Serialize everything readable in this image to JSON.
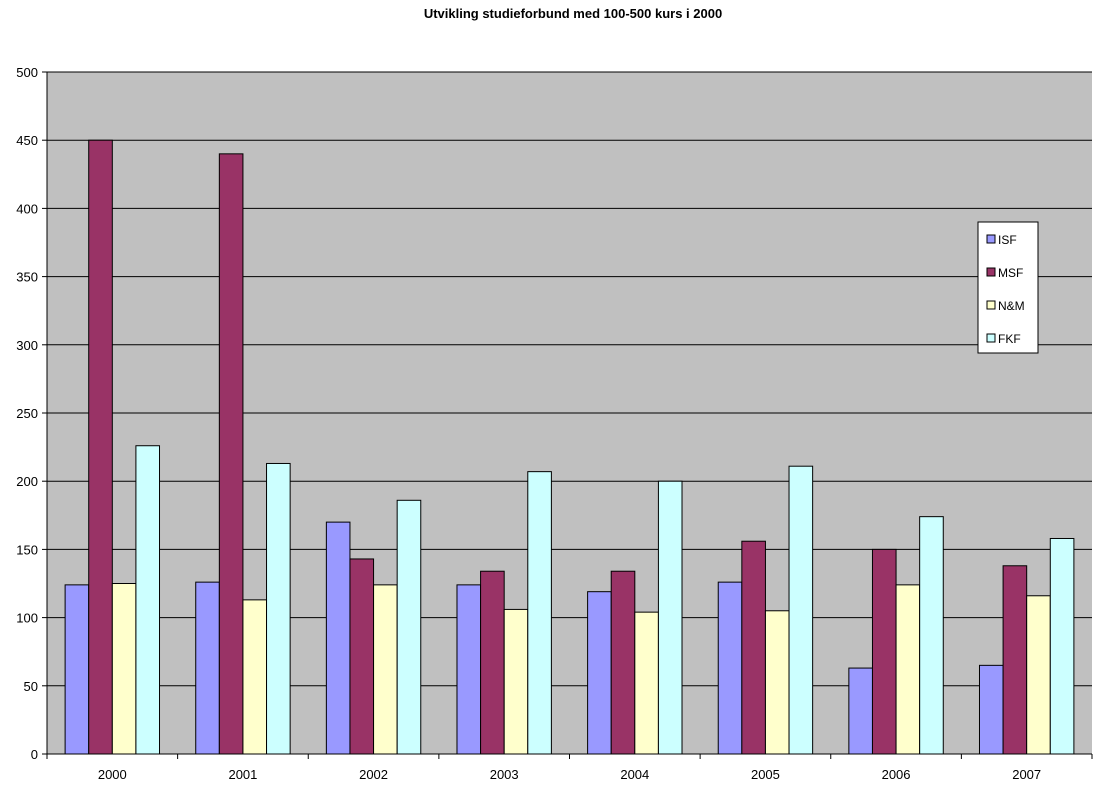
{
  "colors": {
    "plot_background": "#c0c0c0",
    "gridline": "#000000",
    "series": [
      "#9999ff",
      "#993366",
      "#ffffcc",
      "#ccffff"
    ]
  },
  "chart_data": {
    "type": "bar",
    "title": "Utvikling studieforbund med 100-500 kurs i 2000",
    "xlabel": "",
    "ylabel": "",
    "categories": [
      "2000",
      "2001",
      "2002",
      "2003",
      "2004",
      "2005",
      "2006",
      "2007"
    ],
    "ylim": [
      0,
      500
    ],
    "yticks": [
      0,
      50,
      100,
      150,
      200,
      250,
      300,
      350,
      400,
      450,
      500
    ],
    "grid": true,
    "legend_position": "right",
    "series": [
      {
        "name": "ISF",
        "values": [
          124,
          126,
          170,
          124,
          119,
          126,
          63,
          65
        ]
      },
      {
        "name": "MSF",
        "values": [
          450,
          440,
          143,
          134,
          134,
          156,
          150,
          138
        ]
      },
      {
        "name": "N&M",
        "values": [
          125,
          113,
          124,
          106,
          104,
          105,
          124,
          116
        ]
      },
      {
        "name": "FKF",
        "values": [
          226,
          213,
          186,
          207,
          200,
          211,
          174,
          158
        ]
      }
    ]
  }
}
